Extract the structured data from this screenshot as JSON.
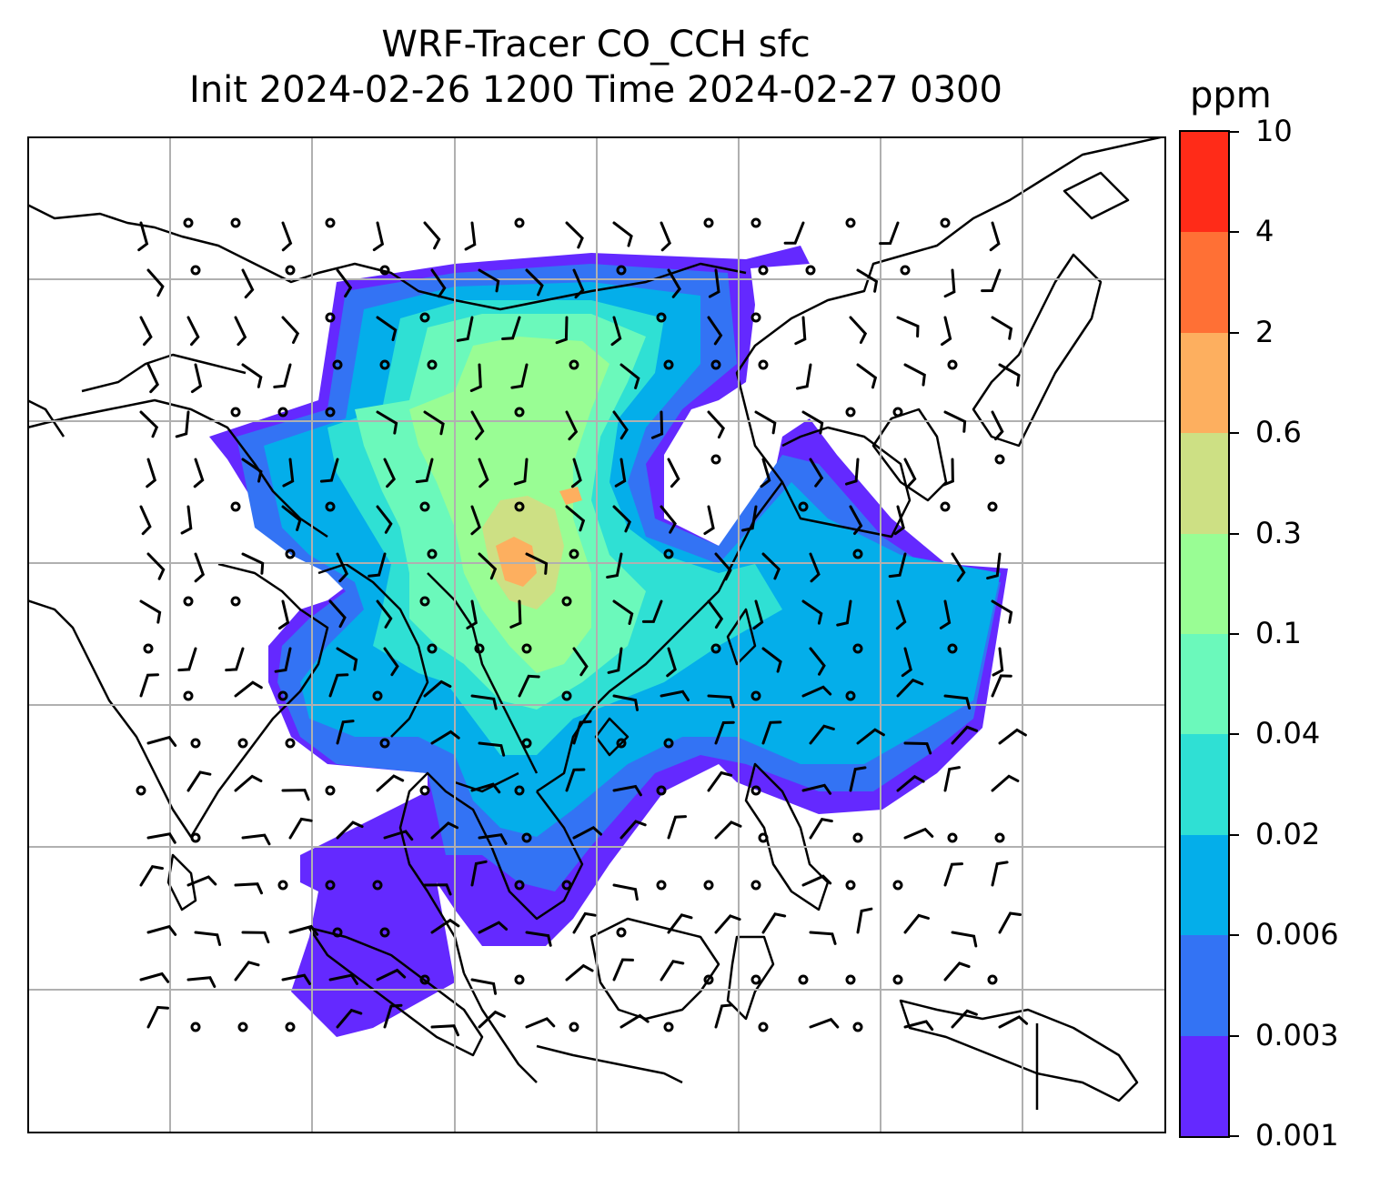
{
  "title": {
    "line1": "WRF-Tracer CO_CCH sfc",
    "line2": "Init 2024-02-26 1200 Time 2024-02-27 0300"
  },
  "colorbar": {
    "unit": "ppm",
    "levels": [
      "0.001",
      "0.003",
      "0.006",
      "0.02",
      "0.04",
      "0.1",
      "0.3",
      "0.6",
      "2",
      "4",
      "10"
    ],
    "colors": [
      "#6429ff",
      "#3373f4",
      "#04aeea",
      "#2fe0d4",
      "#6bf9bb",
      "#99fd94",
      "#cde084",
      "#fdaf5f",
      "#ff7035",
      "#ff2b18"
    ]
  },
  "map": {
    "gridlines": true,
    "gridline_color": "#b0b0b0",
    "coastline_color": "#000000",
    "wind_barbs": true,
    "calm_markers": true
  }
}
